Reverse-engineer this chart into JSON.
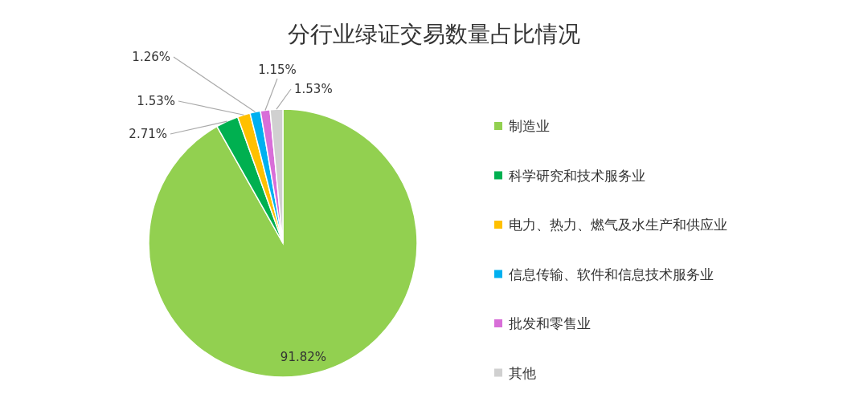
{
  "chart_data": {
    "type": "pie",
    "title": "分行业绿证交易数量占比情况",
    "categories": [
      "制造业",
      "科学研究和技术服务业",
      "电力、热力、燃气及水生产和供应业",
      "信息传输、软件和信息技术服务业",
      "批发和零售业",
      "其他"
    ],
    "values": [
      91.82,
      2.71,
      1.53,
      1.26,
      1.15,
      1.53
    ],
    "colors": [
      "#92d050",
      "#00b050",
      "#ffc000",
      "#00b0f0",
      "#d86ed8",
      "#d0d0d0"
    ],
    "value_labels": [
      "91.82%",
      "2.71%",
      "1.53%",
      "1.26%",
      "1.15%",
      "1.53%"
    ],
    "legend": "right"
  }
}
